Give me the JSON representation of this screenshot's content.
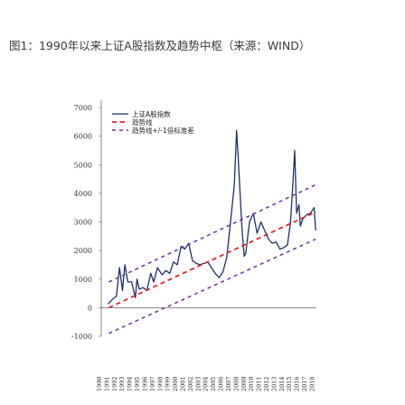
{
  "figure": {
    "title": "图1：1990年以来上证A股指数及趋势中枢（来源：WIND）"
  },
  "chart_data": {
    "type": "line",
    "title": "图1：1990年以来上证A股指数及趋势中枢（来源：WIND）",
    "xlabel": "",
    "ylabel": "",
    "xlim": [
      1990,
      2018.3
    ],
    "ylim": [
      -1000,
      7000
    ],
    "yticks": [
      -1000,
      0,
      1000,
      2000,
      3000,
      4000,
      5000,
      6000,
      7000
    ],
    "xticks": [
      "1990",
      "1991",
      "1992",
      "1993",
      "1994",
      "1995",
      "1996",
      "1997",
      "1998",
      "1999",
      "2000",
      "2001",
      "2002",
      "2003",
      "2004",
      "2005",
      "2006",
      "2007",
      "2008",
      "2009",
      "2010",
      "2011",
      "2012",
      "2013",
      "2014",
      "2015",
      "2016",
      "2017",
      "2018"
    ],
    "grid": false,
    "legend": {
      "position": "top-left",
      "entries": [
        "上证A股指数",
        "趋势线",
        "趋势线+/-1倍标准差"
      ]
    },
    "colors": {
      "index": "#1f2f6b",
      "trend": "#e0262a",
      "band": "#7030a0",
      "axis": "#666666"
    },
    "series": [
      {
        "name": "上证A股指数",
        "style": "solid",
        "x": [
          1990.9,
          1991.5,
          1992.0,
          1992.4,
          1992.8,
          1993.1,
          1993.5,
          1994.0,
          1994.5,
          1994.7,
          1995.0,
          1995.5,
          1996.0,
          1996.5,
          1996.9,
          1997.4,
          1998.0,
          1998.5,
          1999.0,
          1999.5,
          2000.0,
          2000.5,
          2001.0,
          2001.5,
          2002.0,
          2002.5,
          2003.0,
          2004.0,
          2004.5,
          2005.0,
          2005.5,
          2006.0,
          2006.5,
          2007.0,
          2007.5,
          2007.8,
          2008.0,
          2008.5,
          2008.8,
          2009.0,
          2009.5,
          2010.0,
          2010.5,
          2011.0,
          2011.5,
          2012.0,
          2012.5,
          2013.0,
          2013.5,
          2014.0,
          2014.5,
          2014.9,
          2015.2,
          2015.45,
          2015.7,
          2016.0,
          2016.2,
          2016.5,
          2017.0,
          2017.5,
          2018.0,
          2018.2
        ],
        "values": [
          130,
          300,
          400,
          1400,
          600,
          1500,
          900,
          900,
          350,
          1000,
          650,
          700,
          600,
          1200,
          900,
          1400,
          1150,
          1300,
          1200,
          1600,
          1500,
          2150,
          2050,
          2250,
          1650,
          1550,
          1500,
          1600,
          1400,
          1200,
          1050,
          1250,
          1750,
          3000,
          4300,
          6200,
          5300,
          2800,
          1800,
          1900,
          3000,
          3300,
          2600,
          3000,
          2700,
          2400,
          2250,
          2300,
          2050,
          2100,
          2200,
          3000,
          4300,
          5500,
          3300,
          3600,
          2850,
          3100,
          3250,
          3300,
          3500,
          2700
        ]
      },
      {
        "name": "趋势线",
        "style": "dashed",
        "x": [
          1991.0,
          2018.2
        ],
        "values": [
          0,
          3350
        ]
      },
      {
        "name": "趋势线+/-1倍标准差",
        "style": "dashed",
        "x": [
          1991.0,
          2018.2
        ],
        "values": [
          900,
          4300
        ]
      },
      {
        "name": "趋势线+/-1倍标准差",
        "style": "dashed",
        "x": [
          1991.0,
          2018.2
        ],
        "values": [
          -900,
          2400
        ]
      }
    ]
  }
}
